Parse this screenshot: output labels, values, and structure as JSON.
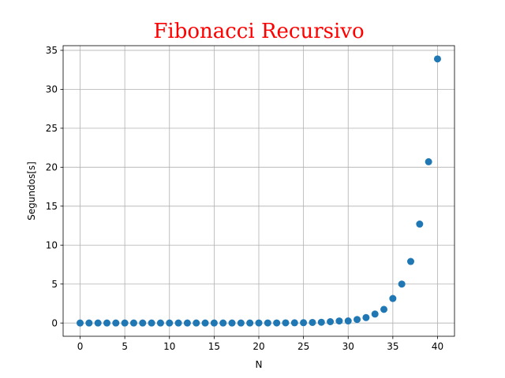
{
  "chart_data": {
    "type": "scatter",
    "title": "Fibonacci Recursivo",
    "title_color": "#ff0000",
    "xlabel": "N",
    "ylabel": "Segundos[s]",
    "xlim": [
      -1.9,
      41.9
    ],
    "ylim": [
      -1.7,
      35.6
    ],
    "xticks": [
      0,
      5,
      10,
      15,
      20,
      25,
      30,
      35,
      40
    ],
    "yticks": [
      0,
      5,
      10,
      15,
      20,
      25,
      30,
      35
    ],
    "grid": true,
    "marker_color": "#1f77b4",
    "series": [
      {
        "x": [
          0,
          1,
          2,
          3,
          4,
          5,
          6,
          7,
          8,
          9,
          10,
          11,
          12,
          13,
          14,
          15,
          16,
          17,
          18,
          19,
          20,
          21,
          22,
          23,
          24,
          25,
          26,
          27,
          28,
          29,
          30,
          31,
          32,
          33,
          34,
          35,
          36,
          37,
          38,
          39,
          40
        ],
        "y": [
          0,
          0,
          0,
          0,
          0,
          0,
          0,
          0,
          0,
          0,
          0,
          0,
          0,
          0,
          0,
          0,
          0,
          0,
          0,
          0,
          0.01,
          0.01,
          0.01,
          0.02,
          0.03,
          0.04,
          0.07,
          0.1,
          0.17,
          0.26,
          0.27,
          0.45,
          0.7,
          1.15,
          1.75,
          3.15,
          5.0,
          7.9,
          12.7,
          20.7,
          33.9
        ]
      }
    ]
  }
}
